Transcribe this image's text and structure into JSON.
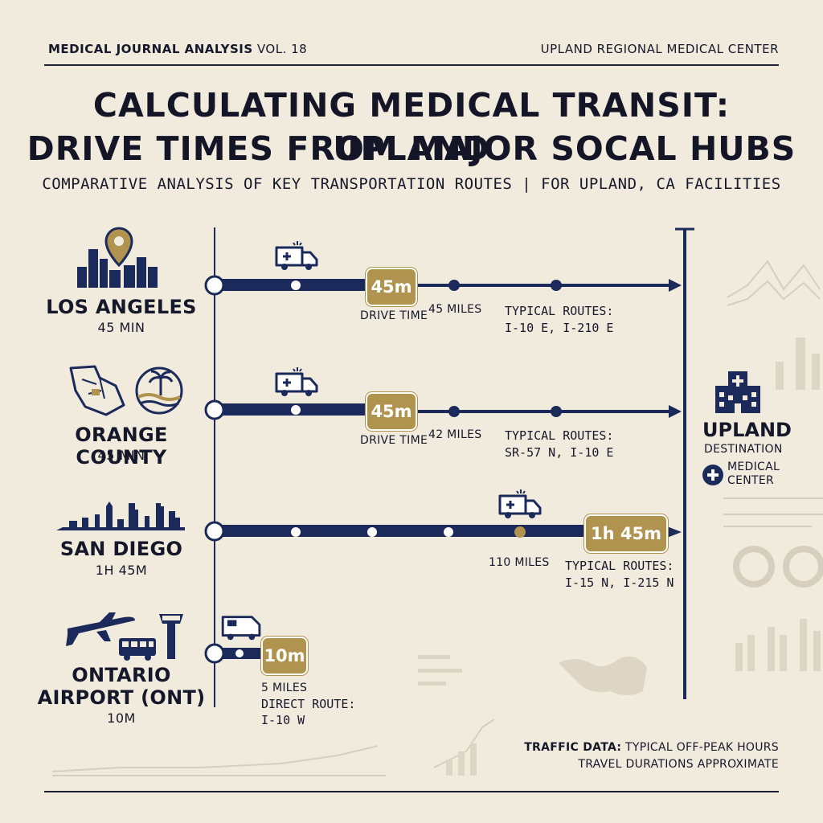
{
  "header": {
    "journal": "MEDICAL JOURNAL ANALYSIS",
    "volume": "VOL. 18",
    "organization": "UPLAND REGIONAL MEDICAL CENTER"
  },
  "title": {
    "line1": "CALCULATING MEDICAL TRANSIT: UPLAND",
    "line2": "DRIVE TIMES FROM MAJOR SOCAL HUBS"
  },
  "subtitle": "COMPARATIVE ANALYSIS OF KEY TRANSPORTATION ROUTES | FOR UPLAND, CA FACILITIES",
  "routes": [
    {
      "name": "LOS ANGELES",
      "time": "45 MIN",
      "badge": "45m",
      "drive_label": "DRIVE TIME",
      "miles": "45 MILES",
      "routes_label": "TYPICAL ROUTES:",
      "routes": "I-10 E, I-210 E"
    },
    {
      "name": "ORANGE COUNTY",
      "time": "45 MIN",
      "badge": "45m",
      "drive_label": "DRIVE TIME",
      "miles": "42 MILES",
      "routes_label": "TYPICAL ROUTES:",
      "routes": "SR-57 N, I-10 E"
    },
    {
      "name": "SAN DIEGO",
      "time": "1H 45M",
      "badge": "1h 45m",
      "miles": "110 MILES",
      "routes_label": "TYPICAL ROUTES:",
      "routes": "I-15 N, I-215 N"
    },
    {
      "name_line1": "ONTARIO",
      "name_line2": "AIRPORT (ONT)",
      "time": "10M",
      "badge": "10m",
      "miles": "5 MILES",
      "routes_label": "DIRECT ROUTE:",
      "routes": "I-10 W"
    }
  ],
  "destination": {
    "title": "UPLAND",
    "subtitle": "DESTINATION",
    "facility_line1": "MEDICAL",
    "facility_line2": "CENTER"
  },
  "footer": {
    "label": "TRAFFIC DATA:",
    "line1": "TYPICAL OFF-PEAK HOURS",
    "line2": "TRAVEL DURATIONS APPROXIMATE"
  },
  "colors": {
    "navy": "#1b2a5a",
    "gold": "#b0934f",
    "background": "#f1ebdd"
  }
}
